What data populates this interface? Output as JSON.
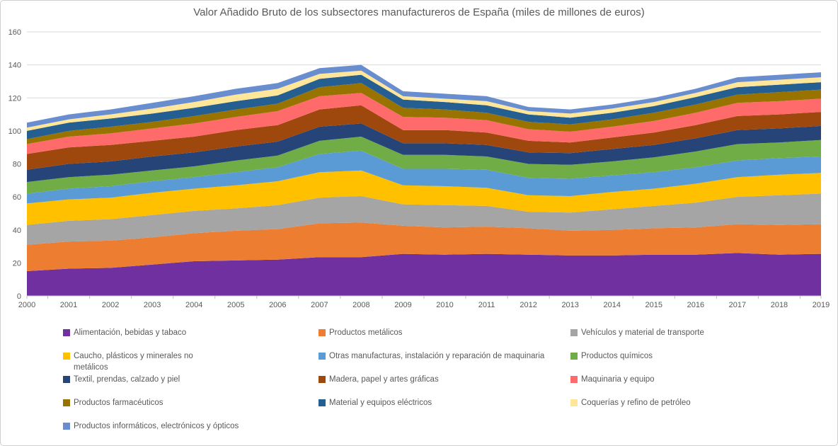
{
  "title": "Valor Añadido Bruto de los subsectores manufactureros de España (miles de millones de euros)",
  "chart_data": {
    "type": "area",
    "stacked": true,
    "title": "Valor Añadido Bruto de los subsectores manufactureros de España (miles de millones de euros)",
    "xlabel": "",
    "ylabel": "",
    "ylim": [
      0,
      160
    ],
    "y_ticks": [
      0,
      20,
      40,
      60,
      80,
      100,
      120,
      140,
      160
    ],
    "grid": true,
    "legend_position": "bottom",
    "categories": [
      "2000",
      "2001",
      "2002",
      "2003",
      "2004",
      "2005",
      "2006",
      "2007",
      "2008",
      "2009",
      "2010",
      "2011",
      "2012",
      "2013",
      "2014",
      "2015",
      "2016",
      "2017",
      "2018",
      "2019"
    ],
    "series": [
      {
        "name": "Alimentación, bebidas y tabaco",
        "color": "#7030A0",
        "values": [
          15,
          16.5,
          17,
          19,
          21,
          21.5,
          22,
          23.5,
          23.5,
          25.5,
          25,
          25.5,
          25,
          24.5,
          24.5,
          25,
          25,
          26,
          25,
          25.5
        ]
      },
      {
        "name": "Productos metálicos",
        "color": "#ED7D31",
        "values": [
          16,
          16.5,
          16.5,
          16.5,
          17,
          18,
          18.5,
          20.5,
          21,
          17,
          16.5,
          16.5,
          16,
          15,
          15.5,
          16,
          16.5,
          17.5,
          18,
          18
        ]
      },
      {
        "name": "Vehículos y material de transporte",
        "color": "#A5A5A5",
        "values": [
          12,
          12.5,
          13,
          13.5,
          13.5,
          13.5,
          14.5,
          15.5,
          16,
          13,
          13.5,
          12.5,
          10,
          11,
          12.5,
          13.5,
          15,
          16.5,
          18,
          18.5
        ]
      },
      {
        "name": "Caucho, plásticos y minerales no metálicos",
        "color": "#FFC000",
        "values": [
          13,
          13,
          13,
          13.5,
          13.5,
          14,
          14.5,
          15.5,
          15.5,
          11.5,
          11.5,
          11,
          10,
          10,
          10.5,
          10.5,
          11.5,
          12,
          12.5,
          12.5
        ]
      },
      {
        "name": "Otras manufacturas, instalación y reparación de maquinaria",
        "color": "#5B9BD5",
        "values": [
          6,
          6.5,
          7,
          7,
          7,
          8,
          8.5,
          11,
          12,
          10,
          10.5,
          11,
          10.5,
          10.5,
          10,
          10,
          10,
          10,
          10,
          10
        ]
      },
      {
        "name": "Productos químicos",
        "color": "#70AD47",
        "values": [
          7,
          7,
          7,
          6.5,
          6.5,
          7,
          7,
          8,
          8.5,
          8.5,
          8.5,
          8,
          8.5,
          8.5,
          8.5,
          9,
          9.5,
          10,
          9.5,
          10
        ]
      },
      {
        "name": "Textil, prendas, calzado y piel",
        "color": "#264478",
        "values": [
          7.5,
          8,
          8,
          8.5,
          8.5,
          8.5,
          8.5,
          8.5,
          8,
          7,
          7,
          7,
          7,
          7,
          7.5,
          7.5,
          8,
          8.5,
          8.5,
          8.5
        ]
      },
      {
        "name": "Madera, papel y artes gráficas",
        "color": "#9E480E",
        "values": [
          9.5,
          10,
          10,
          9.5,
          9.5,
          10,
          10,
          10.5,
          11,
          8,
          8,
          7.5,
          7,
          6.5,
          7,
          7.5,
          8,
          8.5,
          8.5,
          8.5
        ]
      },
      {
        "name": "Maquinaria y equipo",
        "color": "#FF6A6A",
        "values": [
          6,
          6.5,
          7,
          7.5,
          8,
          8,
          8.5,
          8,
          7.5,
          8,
          7.5,
          7.5,
          7,
          6.5,
          6.5,
          7,
          7.5,
          8,
          8,
          8
        ]
      },
      {
        "name": "Productos farmacéuticos",
        "color": "#997300",
        "values": [
          3,
          3.5,
          4,
          4,
          4.5,
          4.5,
          4.5,
          5.5,
          6,
          5.5,
          5,
          4.5,
          4.5,
          4.5,
          4.5,
          5,
          5,
          5,
          5.5,
          5.5
        ]
      },
      {
        "name": "Material y equipos eléctricos",
        "color": "#255E91",
        "values": [
          5,
          5,
          5,
          5,
          5,
          5,
          5,
          5,
          5,
          5,
          4.5,
          4.5,
          4.5,
          4,
          4,
          4,
          4.5,
          4.5,
          4.5,
          4.5
        ]
      },
      {
        "name": "Coquerías y refino de petróleo",
        "color": "#FFE699",
        "values": [
          2,
          2,
          2.5,
          3,
          3.5,
          4,
          4,
          3,
          2.5,
          2,
          2,
          2.5,
          2,
          2.5,
          2.5,
          2.5,
          2.5,
          3,
          3,
          3
        ]
      },
      {
        "name": "Productos informáticos, electrónicos y ópticos",
        "color": "#698ED0",
        "values": [
          3,
          3,
          3,
          3.5,
          3.5,
          3.5,
          3.5,
          3.5,
          3.5,
          3,
          3,
          3,
          2.5,
          2.5,
          2.5,
          2.5,
          2.5,
          3,
          3,
          3
        ]
      }
    ]
  }
}
